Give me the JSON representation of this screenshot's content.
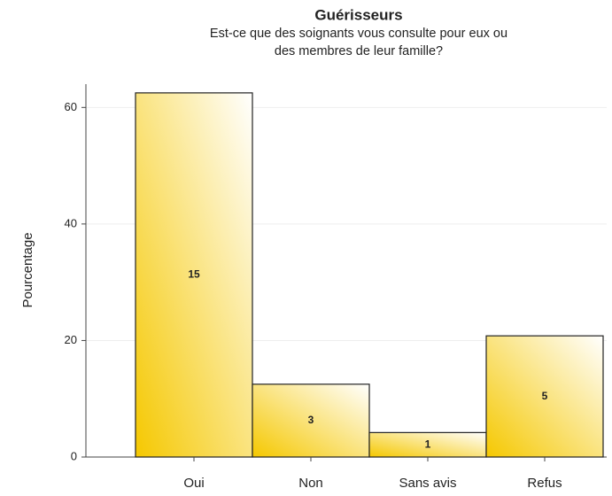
{
  "chart_data": {
    "type": "bar",
    "title": "Guérisseurs",
    "subtitle": [
      "Est-ce que des soignants vous consulte pour eux ou",
      "des membres de leur famille?"
    ],
    "ylabel": "Pourcentage",
    "categories": [
      "Oui",
      "Non",
      "Sans avis",
      "Refus"
    ],
    "values": [
      62.5,
      12.5,
      4.2,
      20.8
    ],
    "counts": [
      15,
      3,
      1,
      5
    ],
    "color": "#f5c800",
    "ylim": [
      0,
      64
    ],
    "yticks": [
      0,
      20,
      40,
      60
    ],
    "grid": true
  }
}
